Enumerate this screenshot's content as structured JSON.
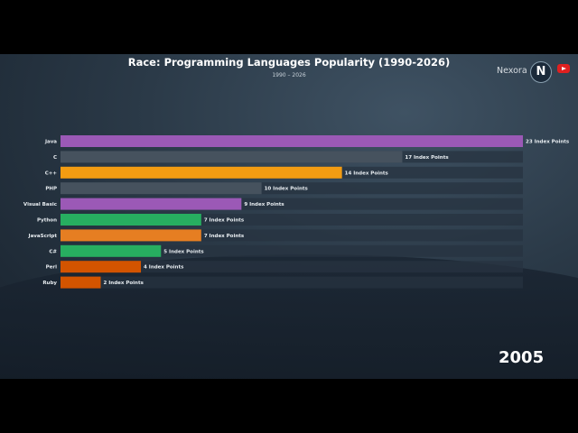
{
  "title": "Race: Programming Languages Popularity (1990-2026)",
  "subtitle": "1990 – 2026",
  "brand": "Nexora",
  "logo_letter": "N",
  "year": "2005",
  "colors": {
    "purple": "#9b59b6",
    "gray": "#46525e",
    "orange": "#f39c12",
    "green": "#27ae60",
    "dark_orange": "#e67e22",
    "burnt": "#d35400"
  },
  "chart_data": {
    "type": "bar",
    "orientation": "horizontal",
    "unit": "Index Points",
    "xlim": [
      0,
      23
    ],
    "categories": [
      "Java",
      "C",
      "C++",
      "PHP",
      "Visual Basic",
      "Python",
      "JavaScript",
      "C#",
      "Perl",
      "Ruby"
    ],
    "values": [
      23,
      17,
      14,
      10,
      9,
      7,
      7,
      5,
      4,
      2
    ],
    "value_labels": [
      "23 Index Points",
      "17 Index Points",
      "14 Index Points",
      "10 Index Points",
      "9 Index Points",
      "7 Index Points",
      "7 Index Points",
      "5 Index Points",
      "4 Index Points",
      "2 Index Points"
    ],
    "bar_colors": [
      "#9b59b6",
      "#46525e",
      "#f39c12",
      "#46525e",
      "#9b59b6",
      "#27ae60",
      "#e67e22",
      "#27ae60",
      "#d35400",
      "#d35400"
    ]
  }
}
